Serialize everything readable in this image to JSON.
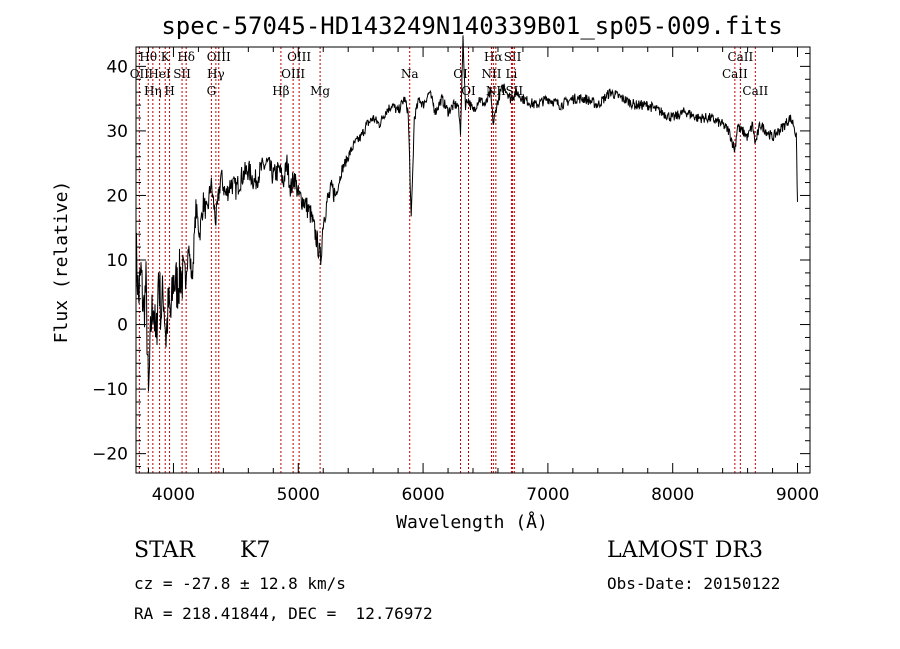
{
  "chart_data": {
    "type": "line",
    "title": "spec-57045-HD143249N140339B01_sp05-009.fits",
    "xlabel": "Wavelength (Å)",
    "ylabel": "Flux (relative)",
    "xlim": [
      3700,
      9100
    ],
    "ylim": [
      -23,
      43
    ],
    "xticks": [
      4000,
      5000,
      6000,
      7000,
      8000,
      9000
    ],
    "yticks": [
      -20,
      -10,
      0,
      10,
      20,
      30,
      40
    ],
    "series": [
      {
        "name": "flux",
        "x": [
          3700,
          3720,
          3740,
          3760,
          3780,
          3800,
          3820,
          3840,
          3860,
          3880,
          3900,
          3920,
          3940,
          3960,
          3980,
          4000,
          4030,
          4060,
          4090,
          4120,
          4150,
          4180,
          4210,
          4240,
          4270,
          4300,
          4340,
          4380,
          4420,
          4460,
          4500,
          4550,
          4600,
          4650,
          4700,
          4750,
          4800,
          4850,
          4880,
          4910,
          4940,
          4970,
          5000,
          5050,
          5100,
          5150,
          5180,
          5200,
          5230,
          5270,
          5300,
          5350,
          5400,
          5450,
          5500,
          5550,
          5600,
          5650,
          5700,
          5750,
          5800,
          5850,
          5880,
          5893,
          5905,
          5930,
          5970,
          6000,
          6050,
          6100,
          6150,
          6200,
          6250,
          6280,
          6300,
          6320,
          6340,
          6360,
          6400,
          6450,
          6500,
          6540,
          6563,
          6590,
          6620,
          6650,
          6700,
          6750,
          6800,
          6900,
          7000,
          7100,
          7200,
          7300,
          7400,
          7500,
          7600,
          7700,
          7800,
          7900,
          8000,
          8100,
          8200,
          8300,
          8400,
          8450,
          8498,
          8520,
          8542,
          8560,
          8600,
          8640,
          8662,
          8700,
          8750,
          8800,
          8850,
          8900,
          8940,
          8970,
          8990,
          9000
        ],
        "values": [
          12,
          4,
          8,
          2,
          6,
          -12,
          0,
          4,
          -4,
          8,
          2,
          5,
          -2,
          3,
          1,
          7,
          6,
          8,
          6,
          12,
          7,
          18,
          14,
          19,
          17,
          22,
          16,
          23,
          20,
          22,
          21,
          23,
          24,
          22,
          24,
          25,
          23,
          24,
          22,
          25,
          21,
          23,
          20,
          19,
          17,
          13,
          10,
          16,
          19,
          21,
          20,
          24,
          26,
          28,
          29,
          31,
          32,
          31,
          33,
          34,
          33,
          35,
          33,
          25,
          16,
          32,
          35,
          34,
          36,
          33,
          35,
          33,
          34,
          34,
          30,
          44,
          34,
          35,
          33,
          35,
          34,
          36,
          31,
          34,
          36,
          37,
          35,
          36,
          35,
          34,
          35,
          34,
          35,
          35,
          34,
          36,
          35,
          34,
          34,
          33,
          32,
          33,
          32,
          32,
          31,
          30,
          27,
          31,
          30,
          30,
          29,
          31,
          28,
          31,
          30,
          29,
          30,
          31,
          32,
          31,
          29,
          19
        ]
      }
    ],
    "lines": [
      {
        "label": "Hθ",
        "x": 3798,
        "row": 0
      },
      {
        "label": "OII",
        "x": 3727,
        "row": 1
      },
      {
        "label": "Hη",
        "x": 3835,
        "row": 2
      },
      {
        "label": "K",
        "x": 3934,
        "row": 0
      },
      {
        "label": "HeI",
        "x": 3889,
        "row": 1
      },
      {
        "label": "H",
        "x": 3969,
        "row": 2
      },
      {
        "label": "Hδ",
        "x": 4102,
        "row": 0
      },
      {
        "label": "SII",
        "x": 4069,
        "row": 1
      },
      {
        "label": "OIII",
        "x": 4363,
        "row": 0
      },
      {
        "label": "Hγ",
        "x": 4340,
        "row": 1
      },
      {
        "label": "G",
        "x": 4304,
        "row": 2
      },
      {
        "label": "OIII",
        "x": 5007,
        "row": 0
      },
      {
        "label": "OIII",
        "x": 4959,
        "row": 1
      },
      {
        "label": "Hβ",
        "x": 4861,
        "row": 2
      },
      {
        "label": "Mg",
        "x": 5175,
        "row": 2
      },
      {
        "label": "Na",
        "x": 5893,
        "row": 1
      },
      {
        "label": "OI",
        "x": 6300,
        "row": 1
      },
      {
        "label": "OI",
        "x": 6364,
        "row": 2
      },
      {
        "label": "Hα",
        "x": 6563,
        "row": 0
      },
      {
        "label": "SII",
        "x": 6717,
        "row": 0
      },
      {
        "label": "NII",
        "x": 6548,
        "row": 1
      },
      {
        "label": "Li",
        "x": 6708,
        "row": 1
      },
      {
        "label": "NII",
        "x": 6583,
        "row": 2
      },
      {
        "label": "SII",
        "x": 6731,
        "row": 2
      },
      {
        "label": "CaII",
        "x": 8542,
        "row": 0
      },
      {
        "label": "CaII",
        "x": 8498,
        "row": 1
      },
      {
        "label": "CaII",
        "x": 8662,
        "row": 2
      }
    ]
  },
  "info": {
    "object_class": "STAR",
    "subclass": "K7",
    "survey": "LAMOST DR3",
    "redshift": "cz = -27.8 ± 12.8 km/s",
    "obs_date": "Obs-Date: 20150122",
    "coords": "RA = 218.41844, DEC =  12.76972"
  }
}
